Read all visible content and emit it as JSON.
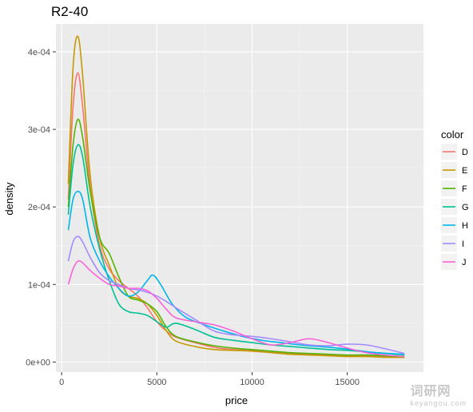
{
  "chart_data": {
    "type": "line",
    "title": "R2-40",
    "xlabel": "price",
    "ylabel": "density",
    "xlim": [
      -300,
      19000
    ],
    "ylim": [
      -1.3e-05,
      0.000436
    ],
    "xticks": [
      0,
      5000,
      10000,
      15000
    ],
    "xtick_labels": [
      "0",
      "5000",
      "10000",
      "15000"
    ],
    "yticks": [
      0,
      0.0001,
      0.0002,
      0.0003,
      0.0004
    ],
    "ytick_labels": [
      "0e+00",
      "1e-04",
      "2e-04",
      "3e-04",
      "4e-04"
    ],
    "grid": true,
    "legend": {
      "title": "color",
      "position": "right"
    },
    "series": [
      {
        "name": "D",
        "color": "#F8766D",
        "points": [
          [
            350,
            0.00021
          ],
          [
            600,
            0.00033
          ],
          [
            850,
            0.000373
          ],
          [
            1100,
            0.00033
          ],
          [
            1500,
            0.000225
          ],
          [
            2000,
            0.00015
          ],
          [
            2500,
            0.00012
          ],
          [
            3000,
            0.000105
          ],
          [
            3500,
            9.5e-05
          ],
          [
            4000,
            8.5e-05
          ],
          [
            4500,
            7e-05
          ],
          [
            5000,
            5.2e-05
          ],
          [
            5500,
            4e-05
          ],
          [
            6000,
            3.2e-05
          ],
          [
            7000,
            2.5e-05
          ],
          [
            8000,
            1.9e-05
          ],
          [
            9000,
            1.6e-05
          ],
          [
            10000,
            1.5e-05
          ],
          [
            11000,
            1.3e-05
          ],
          [
            12000,
            1.1e-05
          ],
          [
            13000,
            1e-05
          ],
          [
            14000,
            9e-06
          ],
          [
            15000,
            8e-06
          ],
          [
            16000,
            8e-06
          ],
          [
            17000,
            7e-06
          ],
          [
            18000,
            6e-06
          ]
        ]
      },
      {
        "name": "E",
        "color": "#C49A00",
        "points": [
          [
            350,
            0.00023
          ],
          [
            600,
            0.00038
          ],
          [
            850,
            0.00042
          ],
          [
            1100,
            0.00037
          ],
          [
            1500,
            0.00024
          ],
          [
            2000,
            0.00016
          ],
          [
            2500,
            0.000125
          ],
          [
            3000,
            9.5e-05
          ],
          [
            3500,
            8.5e-05
          ],
          [
            4000,
            8.2e-05
          ],
          [
            4500,
            7.5e-05
          ],
          [
            5000,
            6e-05
          ],
          [
            5500,
            4e-05
          ],
          [
            6000,
            2.7e-05
          ],
          [
            7000,
            2e-05
          ],
          [
            8000,
            1.6e-05
          ],
          [
            9000,
            1.5e-05
          ],
          [
            10000,
            1.4e-05
          ],
          [
            11000,
            1.2e-05
          ],
          [
            12000,
            1e-05
          ],
          [
            13000,
            9e-06
          ],
          [
            14000,
            8e-06
          ],
          [
            15000,
            7e-06
          ],
          [
            16000,
            7e-06
          ],
          [
            17000,
            6e-06
          ],
          [
            18000,
            6e-06
          ]
        ]
      },
      {
        "name": "F",
        "color": "#53B400",
        "points": [
          [
            350,
            0.0002
          ],
          [
            600,
            0.00028
          ],
          [
            850,
            0.000313
          ],
          [
            1100,
            0.00029
          ],
          [
            1500,
            0.00022
          ],
          [
            2000,
            0.00016
          ],
          [
            2500,
            0.00014
          ],
          [
            3000,
            0.00011
          ],
          [
            3500,
            8.5e-05
          ],
          [
            4000,
            8e-05
          ],
          [
            4500,
            7.5e-05
          ],
          [
            5000,
            6.5e-05
          ],
          [
            5500,
            4.5e-05
          ],
          [
            6000,
            3.3e-05
          ],
          [
            7000,
            2.6e-05
          ],
          [
            8000,
            2.1e-05
          ],
          [
            9000,
            1.8e-05
          ],
          [
            10000,
            1.6e-05
          ],
          [
            11000,
            1.4e-05
          ],
          [
            12000,
            1.2e-05
          ],
          [
            13000,
            1.1e-05
          ],
          [
            14000,
            1e-05
          ],
          [
            15000,
            9e-06
          ],
          [
            16000,
            9e-06
          ],
          [
            17000,
            8e-06
          ],
          [
            18000,
            7e-06
          ]
        ]
      },
      {
        "name": "G",
        "color": "#00C094",
        "points": [
          [
            350,
            0.00019
          ],
          [
            600,
            0.000255
          ],
          [
            850,
            0.00028
          ],
          [
            1100,
            0.000265
          ],
          [
            1500,
            0.0002
          ],
          [
            2000,
            0.000145
          ],
          [
            2500,
            0.000105
          ],
          [
            3000,
            7.5e-05
          ],
          [
            3500,
            6.5e-05
          ],
          [
            4000,
            6.3e-05
          ],
          [
            4500,
            6e-05
          ],
          [
            5000,
            5.2e-05
          ],
          [
            5500,
            4.5e-05
          ],
          [
            6000,
            5e-05
          ],
          [
            7000,
            4.2e-05
          ],
          [
            8000,
            3.2e-05
          ],
          [
            9000,
            2.8e-05
          ],
          [
            10000,
            2.5e-05
          ],
          [
            11000,
            2.2e-05
          ],
          [
            12000,
            2e-05
          ],
          [
            13000,
            1.8e-05
          ],
          [
            14000,
            1.6e-05
          ],
          [
            15000,
            1.5e-05
          ],
          [
            16000,
            1.3e-05
          ],
          [
            17000,
            1.1e-05
          ],
          [
            18000,
            9e-06
          ]
        ]
      },
      {
        "name": "H",
        "color": "#00B6EB",
        "points": [
          [
            350,
            0.00017
          ],
          [
            600,
            0.00021
          ],
          [
            850,
            0.00022
          ],
          [
            1100,
            0.00021
          ],
          [
            1500,
            0.00016
          ],
          [
            2000,
            0.00013
          ],
          [
            2500,
            0.00011
          ],
          [
            3000,
            9.5e-05
          ],
          [
            3500,
            8.5e-05
          ],
          [
            4000,
            9e-05
          ],
          [
            4500,
            0.000105
          ],
          [
            4800,
            0.000112
          ],
          [
            5200,
            0.0001
          ],
          [
            5800,
            7.5e-05
          ],
          [
            6500,
            5.8e-05
          ],
          [
            7500,
            4.8e-05
          ],
          [
            8500,
            4e-05
          ],
          [
            9500,
            3.3e-05
          ],
          [
            10500,
            2.8e-05
          ],
          [
            11500,
            2.5e-05
          ],
          [
            12500,
            2.2e-05
          ],
          [
            13500,
            2e-05
          ],
          [
            14500,
            1.8e-05
          ],
          [
            15500,
            1.5e-05
          ],
          [
            16500,
            1.2e-05
          ],
          [
            18000,
            1e-05
          ]
        ]
      },
      {
        "name": "I",
        "color": "#A58AFF",
        "points": [
          [
            350,
            0.00013
          ],
          [
            600,
            0.000155
          ],
          [
            850,
            0.000162
          ],
          [
            1100,
            0.000155
          ],
          [
            1500,
            0.000135
          ],
          [
            2000,
            0.000115
          ],
          [
            2500,
            0.000105
          ],
          [
            3000,
            0.0001
          ],
          [
            3500,
            9.5e-05
          ],
          [
            4000,
            9.3e-05
          ],
          [
            4500,
            9e-05
          ],
          [
            5000,
            8.5e-05
          ],
          [
            5500,
            7.8e-05
          ],
          [
            6000,
            7e-05
          ],
          [
            7000,
            5.5e-05
          ],
          [
            8000,
            4e-05
          ],
          [
            9000,
            3.5e-05
          ],
          [
            10000,
            3.3e-05
          ],
          [
            11000,
            3e-05
          ],
          [
            12000,
            2.6e-05
          ],
          [
            13000,
            2.2e-05
          ],
          [
            14000,
            2.1e-05
          ],
          [
            15000,
            2.3e-05
          ],
          [
            16000,
            2.2e-05
          ],
          [
            17000,
            1.7e-05
          ],
          [
            18000,
            1.1e-05
          ]
        ]
      },
      {
        "name": "J",
        "color": "#FB61D7",
        "points": [
          [
            350,
            0.0001
          ],
          [
            600,
            0.00012
          ],
          [
            850,
            0.00013
          ],
          [
            1100,
            0.000128
          ],
          [
            1500,
            0.000118
          ],
          [
            2000,
            0.000108
          ],
          [
            2500,
            0.0001
          ],
          [
            3000,
            9.8e-05
          ],
          [
            3500,
            9.5e-05
          ],
          [
            4000,
            9.5e-05
          ],
          [
            4500,
            9.2e-05
          ],
          [
            5000,
            8.2e-05
          ],
          [
            5500,
            6.8e-05
          ],
          [
            6000,
            5.7e-05
          ],
          [
            7000,
            5.2e-05
          ],
          [
            8000,
            4.8e-05
          ],
          [
            9000,
            4e-05
          ],
          [
            10000,
            3e-05
          ],
          [
            11000,
            2.2e-05
          ],
          [
            12000,
            2.5e-05
          ],
          [
            13000,
            3e-05
          ],
          [
            14000,
            2.5e-05
          ],
          [
            15000,
            1.8e-05
          ],
          [
            16000,
            1.2e-05
          ],
          [
            17000,
            9e-06
          ],
          [
            18000,
            7e-06
          ]
        ]
      }
    ]
  },
  "watermark": {
    "text": "词研网",
    "sub": "keyangou.com"
  }
}
